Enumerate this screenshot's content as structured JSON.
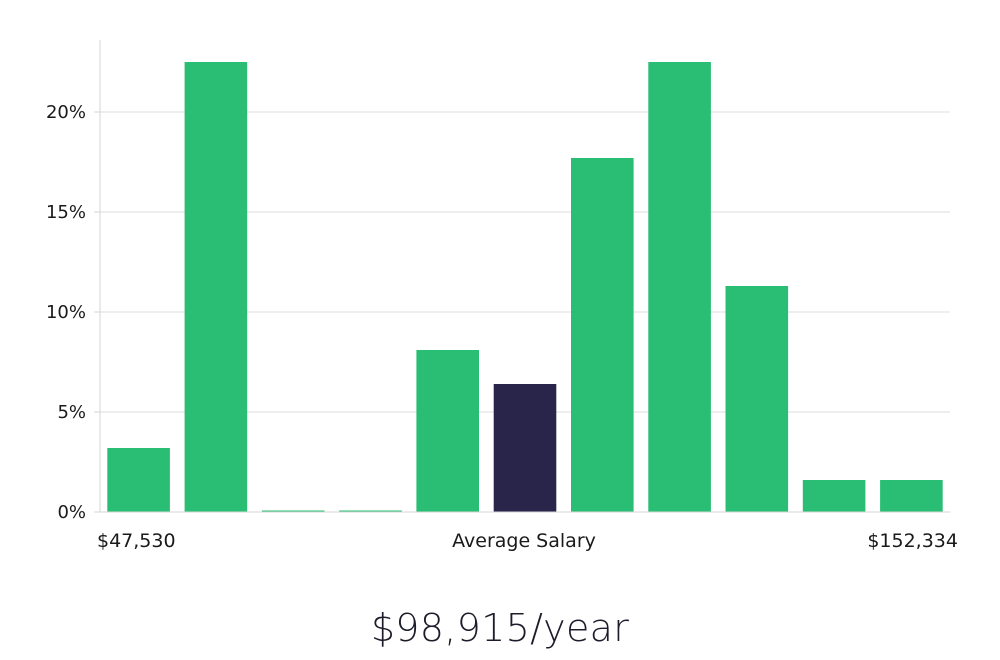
{
  "chart_data": {
    "type": "bar",
    "categories": [
      "1",
      "2",
      "3",
      "4",
      "5",
      "6",
      "7",
      "8",
      "9",
      "10",
      "11"
    ],
    "values": [
      3.2,
      22.5,
      0,
      0,
      8.1,
      6.4,
      17.7,
      22.5,
      11.3,
      1.6,
      1.6
    ],
    "highlight_index": 5,
    "ylim": [
      0,
      23.6
    ],
    "yticks": [
      0,
      5,
      10,
      15,
      20
    ],
    "ytick_labels": [
      "0%",
      "5%",
      "10%",
      "15%",
      "20%"
    ],
    "grid": true,
    "xlabel_left": "$47,530",
    "xlabel_center": "Average Salary",
    "xlabel_right": "$152,334",
    "colors": {
      "bar": "#2abd74",
      "highlight": "#29244a",
      "grid": "#dcdcdc",
      "axis": "#d6d6d6"
    }
  },
  "summary": {
    "salary": "$98,915/year"
  }
}
